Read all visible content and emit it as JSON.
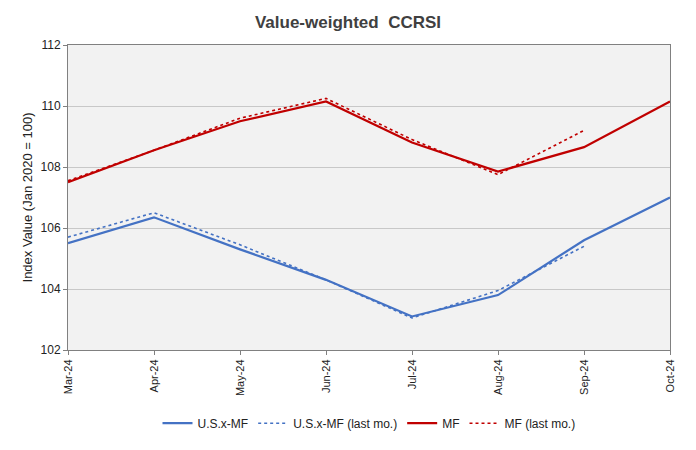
{
  "chart_data": {
    "type": "line",
    "title": "Value-weighted  CCRSI",
    "y_label": "Index Value (Jan 2020 = 100)",
    "categories": [
      "Mar-24",
      "Apr-24",
      "May-24",
      "Jun-24",
      "Jul-24",
      "Aug-24",
      "Sep-24",
      "Oct-24"
    ],
    "series": [
      {
        "name": "U.S.x-MF",
        "color": "#4472c4",
        "line_style": "solid",
        "values": [
          105.5,
          106.35,
          105.3,
          104.3,
          103.1,
          103.8,
          105.6,
          107.0
        ]
      },
      {
        "name": "U.S.x-MF (last mo.)",
        "color": "#4472c4",
        "line_style": "dotted",
        "values": [
          105.7,
          106.5,
          105.45,
          104.3,
          103.05,
          103.95,
          105.4,
          null
        ]
      },
      {
        "name": "MF",
        "color": "#c00000",
        "line_style": "solid",
        "values": [
          107.5,
          108.55,
          109.5,
          110.15,
          108.8,
          107.85,
          108.65,
          110.15
        ]
      },
      {
        "name": "MF (last mo.)",
        "color": "#c00000",
        "line_style": "dotted",
        "values": [
          107.55,
          108.55,
          109.6,
          110.25,
          108.9,
          107.75,
          109.2,
          null
        ]
      }
    ],
    "ylim": [
      102,
      112
    ],
    "yticks": [
      102,
      104,
      106,
      108,
      110,
      112
    ],
    "grid": true,
    "legend": "bottom"
  }
}
